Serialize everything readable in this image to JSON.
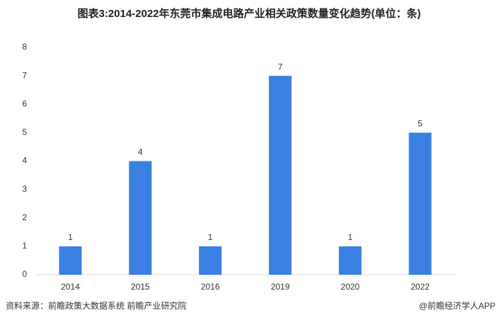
{
  "chart_data": {
    "type": "bar",
    "title": "图表3:2014-2022年东莞市集成电路产业相关政策数量变化趋势(单位：条)",
    "categories": [
      "2014",
      "2015",
      "2016",
      "2019",
      "2020",
      "2022"
    ],
    "values": [
      1,
      4,
      1,
      7,
      1,
      5
    ],
    "color": "#3a80e2",
    "ylim": [
      0,
      8
    ],
    "yticks": [
      0,
      1,
      2,
      3,
      4,
      5,
      6,
      7,
      8
    ],
    "grid": false,
    "source": "资料来源：前瞻政策大数据系统 前瞻产业研究院",
    "credit": "@前瞻经济学人APP"
  }
}
